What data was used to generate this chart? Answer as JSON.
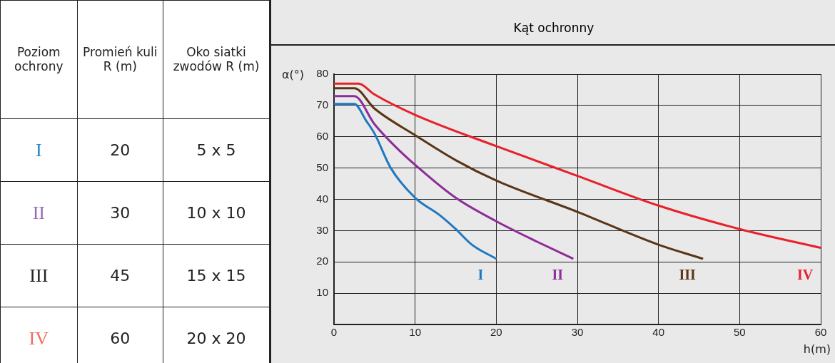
{
  "chart_data": [
    {
      "type": "other",
      "categories": [
        "Poziom ochrony",
        "Promień kuli R (m)",
        "Oko siatki zwodów R (m)"
      ],
      "annotations": [
        "I",
        "20",
        "5 x 5",
        "II",
        "30",
        "10 x 10",
        "III",
        "45",
        "15 x 15",
        "IV",
        "60",
        "20 x 20"
      ],
      "colors": [
        "#1f86c6",
        "#9b6bb5",
        "#222222",
        "#f26b5b"
      ]
    },
    {
      "type": "line",
      "title": "Kąt ochronny",
      "xlabel": "h(m)",
      "ylabel": "α(°)",
      "xlim": [
        0,
        60
      ],
      "xticks": [
        0,
        10,
        20,
        30,
        40,
        50,
        60
      ],
      "ylim": [
        0,
        80
      ],
      "yticks": [
        10,
        20,
        30,
        40,
        50,
        60,
        70,
        80
      ],
      "grid": true,
      "legend": false,
      "marker": "none",
      "line_style": "solid",
      "series": [
        {
          "name": "I",
          "color": "#1f78c1",
          "x": [
            0,
            2.5,
            4,
            5,
            7,
            10,
            13,
            15,
            17,
            20
          ],
          "values": [
            70.5,
            70.5,
            65,
            61,
            50,
            40.5,
            35,
            30.5,
            25.5,
            21
          ]
        },
        {
          "name": "II",
          "color": "#8e2c9a",
          "x": [
            0,
            2.5,
            5,
            7.5,
            10,
            15,
            20,
            25,
            29.5
          ],
          "values": [
            73,
            73,
            64,
            57,
            51,
            40.5,
            33,
            26.5,
            21
          ]
        },
        {
          "name": "III",
          "color": "#5a3515",
          "x": [
            0,
            2.5,
            5,
            10,
            15,
            20,
            30,
            40,
            45.5
          ],
          "values": [
            75.5,
            75.5,
            69,
            60.5,
            52.5,
            46,
            36,
            25.5,
            21
          ]
        },
        {
          "name": "IV",
          "color": "#e8202a",
          "x": [
            0,
            3,
            5,
            10,
            20,
            30,
            40,
            50,
            60
          ],
          "values": [
            77,
            77,
            73.5,
            67,
            57,
            47.5,
            38,
            30.5,
            24.5
          ]
        }
      ]
    }
  ]
}
